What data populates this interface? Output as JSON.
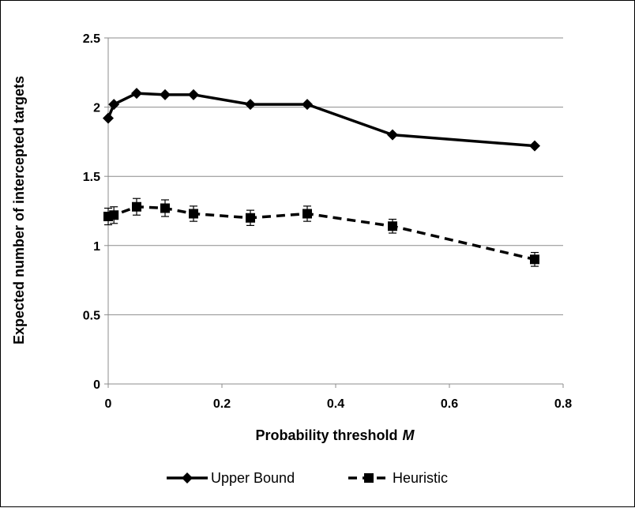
{
  "chart_data": {
    "type": "line",
    "xlabel": "Probability threshold",
    "xlabel_var": "M",
    "ylabel": "Expected number of intercepted targets",
    "xlim": [
      0,
      0.8
    ],
    "ylim": [
      0,
      2.5
    ],
    "xticks": [
      "0",
      "0.2",
      "0.4",
      "0.6",
      "0.8"
    ],
    "yticks": [
      "0",
      "0.5",
      "1",
      "1.5",
      "2",
      "2.5"
    ],
    "grid": "horizontal",
    "legend_position": "bottom",
    "series": [
      {
        "name": "Upper Bound",
        "marker": "diamond",
        "line_style": "solid",
        "color": "#000000",
        "x": [
          0,
          0.01,
          0.05,
          0.1,
          0.15,
          0.25,
          0.35,
          0.5,
          0.75
        ],
        "y": [
          1.92,
          2.02,
          2.1,
          2.09,
          2.09,
          2.02,
          2.02,
          1.8,
          1.72
        ]
      },
      {
        "name": "Heuristic",
        "marker": "square",
        "line_style": "dashed",
        "color": "#000000",
        "x": [
          0,
          0.01,
          0.05,
          0.1,
          0.15,
          0.25,
          0.35,
          0.5,
          0.75
        ],
        "y": [
          1.21,
          1.22,
          1.28,
          1.27,
          1.23,
          1.2,
          1.23,
          1.14,
          0.9
        ],
        "error": [
          0.06,
          0.06,
          0.06,
          0.06,
          0.055,
          0.055,
          0.055,
          0.05,
          0.05
        ]
      }
    ]
  }
}
